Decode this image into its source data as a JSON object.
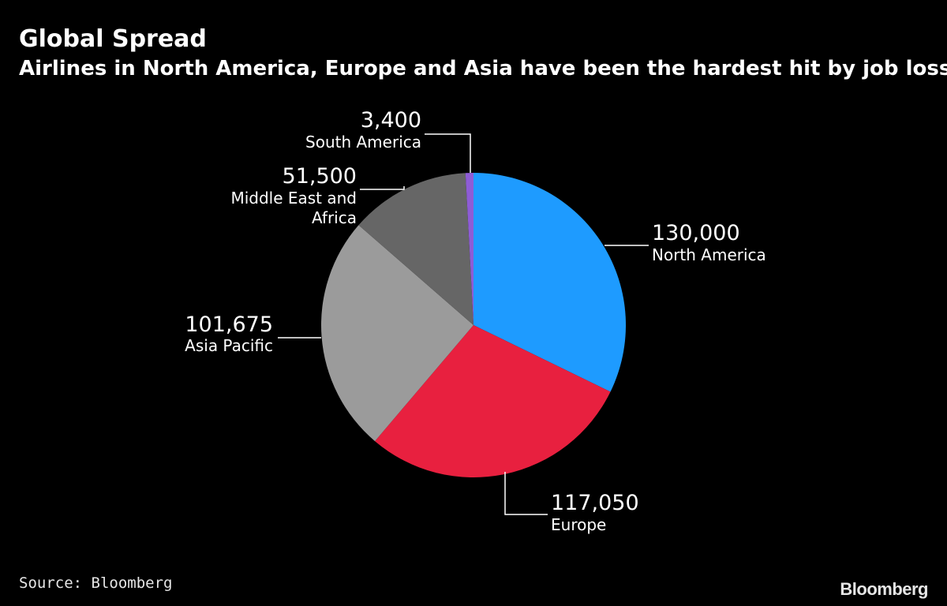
{
  "title": "Global Spread",
  "subtitle": "Airlines in North America, Europe and Asia have been the hardest hit by job losses",
  "source": "Source: Bloomberg",
  "logo": "Bloomberg",
  "chart_data": {
    "type": "pie",
    "title": "Global Spread",
    "subtitle": "Airlines in North America, Europe and Asia have been the hardest hit by job losses",
    "slices": [
      {
        "label": "North America",
        "value": 130000,
        "value_label": "130,000",
        "color": "#1e9bff"
      },
      {
        "label": "Europe",
        "value": 117050,
        "value_label": "117,050",
        "color": "#e8203f"
      },
      {
        "label": "Asia Pacific",
        "value": 101675,
        "value_label": "101,675",
        "color": "#9b9b9b"
      },
      {
        "label": "Middle East and Africa",
        "value": 51500,
        "value_label": "51,500",
        "color": "#666666"
      },
      {
        "label": "South America",
        "value": 3400,
        "value_label": "3,400",
        "color": "#8e5cd6"
      }
    ],
    "start_angle": "12 o'clock",
    "direction": "clockwise",
    "legend": "none"
  }
}
